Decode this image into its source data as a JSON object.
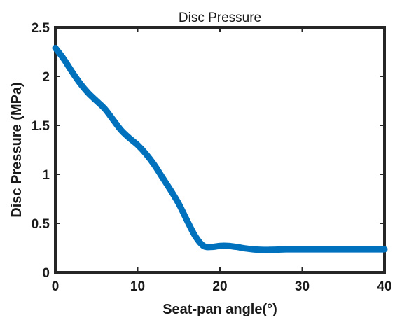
{
  "chart_data": {
    "type": "line",
    "title": "Disc Pressure",
    "xlabel": "Seat-pan angle(°)",
    "ylabel": "Disc Pressure (MPa)",
    "xlim": [
      0,
      40
    ],
    "ylim": [
      0,
      2.5
    ],
    "x_ticks": [
      "0",
      "10",
      "20",
      "30",
      "40"
    ],
    "y_ticks": [
      "0",
      "0.5",
      "1",
      "1.5",
      "2",
      "2.5"
    ],
    "grid": false,
    "series": [
      {
        "color": "#0072bd",
        "x": [
          0,
          1,
          2,
          3,
          4,
          5,
          6,
          7,
          8,
          9,
          10,
          11,
          12,
          13,
          14,
          15,
          16,
          17,
          18,
          19,
          20,
          21,
          22,
          23,
          24,
          25,
          26,
          27,
          28,
          29,
          30,
          32,
          34,
          36,
          38,
          40
        ],
        "y": [
          2.29,
          2.18,
          2.05,
          1.93,
          1.83,
          1.75,
          1.67,
          1.56,
          1.45,
          1.37,
          1.3,
          1.21,
          1.1,
          0.97,
          0.84,
          0.7,
          0.53,
          0.37,
          0.27,
          0.26,
          0.27,
          0.27,
          0.26,
          0.245,
          0.235,
          0.23,
          0.23,
          0.232,
          0.235,
          0.235,
          0.235,
          0.235,
          0.235,
          0.235,
          0.235,
          0.235
        ]
      }
    ]
  }
}
